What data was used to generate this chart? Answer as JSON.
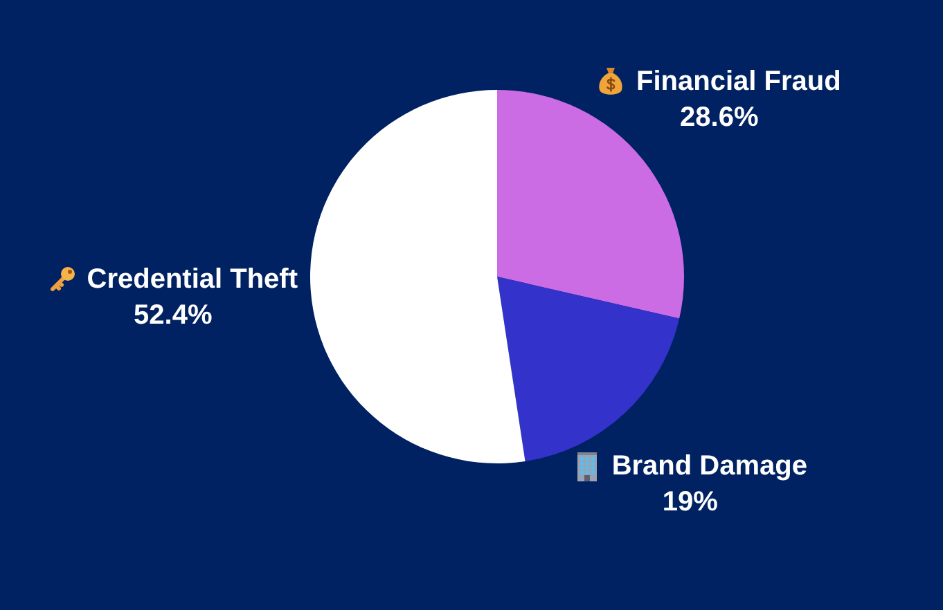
{
  "chart_data": {
    "type": "pie",
    "categories": [
      "Financial Fraud",
      "Brand Damage",
      "Credential Theft"
    ],
    "values": [
      28.6,
      19,
      52.4
    ],
    "colors": [
      "#cc6ce4",
      "#3333cc",
      "#ffffff"
    ],
    "value_labels": [
      "28.6%",
      "19%",
      "52.4%"
    ]
  }
}
